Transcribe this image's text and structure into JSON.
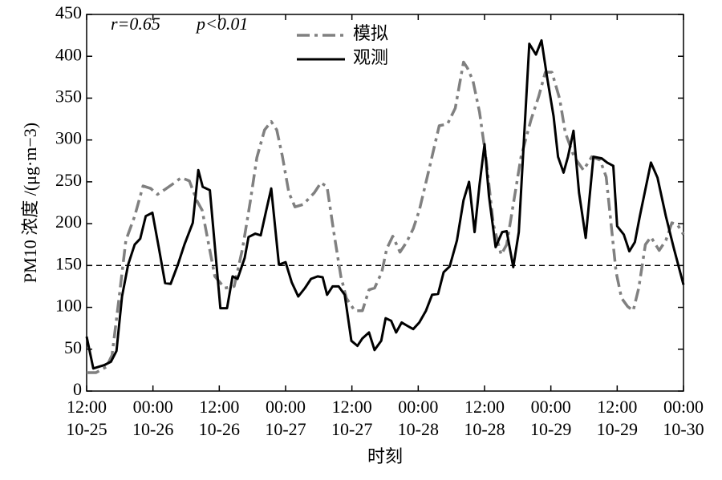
{
  "chart_data": {
    "type": "line",
    "xlabel": "时刻",
    "ylabel": "PM10 浓度 /(μg·m−3)",
    "annotations": [
      "r=0.65",
      "p<0.01"
    ],
    "xlim": [
      0,
      108
    ],
    "xticks": [
      {
        "value": 0,
        "label": [
          "12:00",
          "10-25"
        ]
      },
      {
        "value": 12,
        "label": [
          "00:00",
          "10-26"
        ]
      },
      {
        "value": 24,
        "label": [
          "12:00",
          "10-26"
        ]
      },
      {
        "value": 36,
        "label": [
          "00:00",
          "10-27"
        ]
      },
      {
        "value": 48,
        "label": [
          "12:00",
          "10-27"
        ]
      },
      {
        "value": 60,
        "label": [
          "00:00",
          "10-28"
        ]
      },
      {
        "value": 72,
        "label": [
          "12:00",
          "10-28"
        ]
      },
      {
        "value": 84,
        "label": [
          "00:00",
          "10-29"
        ]
      },
      {
        "value": 96,
        "label": [
          "12:00",
          "10-29"
        ]
      },
      {
        "value": 108,
        "label": [
          "00:00",
          "10-30"
        ]
      }
    ],
    "ylim": [
      0,
      450
    ],
    "yticks": [
      0,
      50,
      100,
      150,
      200,
      250,
      300,
      350,
      400,
      450
    ],
    "hline": 150,
    "series": [
      {
        "name": "模拟",
        "color": "#808080",
        "dash": "dashdot",
        "x": [
          0,
          1.7,
          3.6,
          4.6,
          5.8,
          7.1,
          8.7,
          10.2,
          11.6,
          12.8,
          14.2,
          15.5,
          17.1,
          18.6,
          19.9,
          20.9,
          22.1,
          23.2,
          25.0,
          26.7,
          28.2,
          29.6,
          30.8,
          32.2,
          33.4,
          34.4,
          35.4,
          36.6,
          37.7,
          39.2,
          41.2,
          42.4,
          43.5,
          44.7,
          46.0,
          47.0,
          48.5,
          49.9,
          51.1,
          52.1,
          53.4,
          54.3,
          55.4,
          56.7,
          57.9,
          59.1,
          60.2,
          62.0,
          63.8,
          65.3,
          66.7,
          68.2,
          68.9,
          69.9,
          71.1,
          72.3,
          73.6,
          75.0,
          76.0,
          77.2,
          78.6,
          80.4,
          81.8,
          83.0,
          84.2,
          85.6,
          86.6,
          88.2,
          89.9,
          91.4,
          92.9,
          94.0,
          94.9,
          95.8,
          96.8,
          97.9,
          98.9,
          99.9,
          101.1,
          102.1,
          103.6,
          104.8,
          105.9,
          106.9,
          108.0
        ],
        "values": [
          22,
          22,
          29,
          43,
          108,
          180,
          209,
          245,
          242,
          235,
          241,
          247,
          255,
          251,
          228,
          216,
          175,
          137,
          123,
          125,
          170,
          226,
          279,
          312,
          322,
          312,
          281,
          237,
          220,
          223,
          237,
          249,
          244,
          191,
          137,
          111,
          96,
          96,
          121,
          123,
          142,
          170,
          185,
          166,
          178,
          194,
          216,
          266,
          317,
          319,
          338,
          393,
          386,
          371,
          333,
          276,
          199,
          163,
          175,
          223,
          280,
          324,
          352,
          381,
          381,
          349,
          309,
          280,
          264,
          280,
          276,
          256,
          199,
          142,
          111,
          101,
          96,
          123,
          175,
          184,
          168,
          180,
          201,
          199,
          187
        ]
      },
      {
        "name": "观测",
        "color": "#000000",
        "dash": "solid",
        "x": [
          0,
          1.2,
          3.2,
          4.4,
          5.4,
          6.4,
          7.5,
          8.7,
          9.7,
          10.7,
          11.9,
          13.1,
          14.2,
          15.2,
          16.5,
          17.7,
          19.2,
          20.2,
          21.0,
          22.3,
          24.2,
          25.4,
          26.4,
          27.3,
          28.6,
          29.3,
          30.5,
          31.5,
          32.5,
          33.4,
          34.8,
          36.0,
          37.1,
          38.3,
          39.5,
          40.6,
          41.8,
          42.7,
          43.5,
          44.5,
          45.6,
          46.7,
          47.9,
          49.0,
          49.9,
          51.1,
          52.1,
          53.3,
          54.1,
          55.1,
          56.0,
          57.0,
          58.0,
          59.1,
          60.2,
          61.4,
          62.5,
          63.6,
          64.6,
          65.7,
          67.0,
          68.2,
          69.2,
          70.2,
          71.1,
          72.0,
          72.8,
          74.0,
          75.2,
          76.0,
          77.2,
          78.2,
          80.1,
          81.3,
          82.3,
          83.3,
          84.5,
          85.3,
          86.3,
          87.1,
          88.1,
          89.1,
          90.3,
          91.7,
          93.2,
          94.2,
          95.3,
          96.0,
          97.2,
          98.2,
          99.2,
          100.1,
          102.1,
          103.3,
          104.8,
          106.2,
          108.0
        ],
        "values": [
          65,
          27,
          31,
          35,
          48,
          113,
          151,
          175,
          182,
          209,
          213,
          170,
          129,
          128,
          151,
          175,
          201,
          264,
          244,
          240,
          99,
          99,
          137,
          134,
          159,
          184,
          188,
          186,
          216,
          242,
          151,
          154,
          130,
          113,
          123,
          134,
          137,
          136,
          115,
          125,
          125,
          115,
          60,
          54,
          63,
          70,
          49,
          60,
          87,
          84,
          70,
          82,
          78,
          74,
          82,
          96,
          115,
          116,
          142,
          149,
          180,
          228,
          250,
          190,
          247,
          295,
          233,
          172,
          190,
          191,
          148,
          190,
          415,
          402,
          419,
          376,
          328,
          280,
          261,
          280,
          311,
          237,
          183,
          280,
          278,
          273,
          269,
          197,
          187,
          167,
          178,
          209,
          273,
          255,
          209,
          172,
          127
        ]
      }
    ]
  }
}
